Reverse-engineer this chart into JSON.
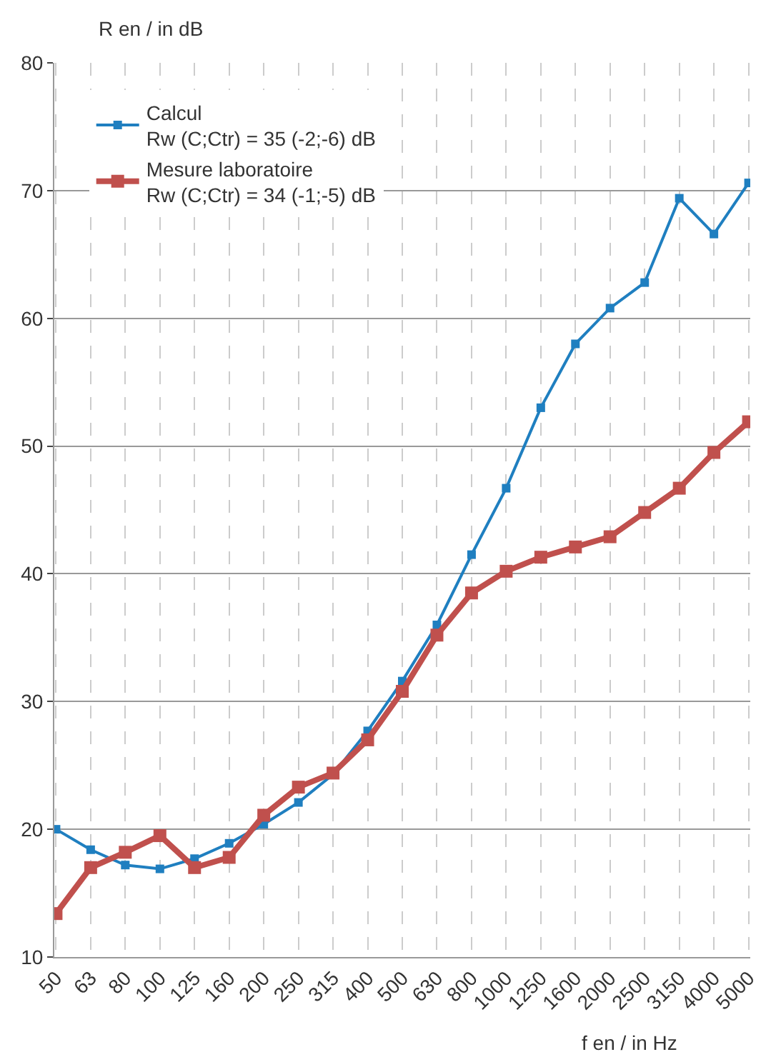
{
  "chart_data": {
    "type": "line",
    "ylabel": "R en / in dB",
    "xlabel": "f en / in Hz",
    "categories": [
      "50",
      "63",
      "80",
      "100",
      "125",
      "160",
      "200",
      "250",
      "315",
      "400",
      "500",
      "630",
      "800",
      "1000",
      "1250",
      "1600",
      "2000",
      "2500",
      "3150",
      "4000",
      "5000"
    ],
    "series": [
      {
        "name": "Calcul\nRw (C;Ctr) = 35 (-2;-6) dB",
        "color": "#1f7fc0",
        "values": [
          20.0,
          18.4,
          17.2,
          16.9,
          17.7,
          18.9,
          20.4,
          22.1,
          24.3,
          27.7,
          31.6,
          36.0,
          41.5,
          46.7,
          53.0,
          58.0,
          60.8,
          62.8,
          69.4,
          66.6,
          70.6
        ]
      },
      {
        "name": "Mesure laboratoire\nRw (C;Ctr) = 34 (-1;-5) dB",
        "color": "#c0504d",
        "values": [
          13.4,
          17.0,
          18.2,
          19.5,
          17.0,
          17.8,
          21.1,
          23.3,
          24.4,
          27.0,
          30.8,
          35.2,
          38.5,
          40.2,
          41.3,
          42.1,
          42.9,
          44.8,
          46.7,
          49.5,
          51.9
        ]
      }
    ],
    "ylim": [
      10,
      80
    ],
    "yticks": [
      10,
      20,
      30,
      40,
      50,
      60,
      70,
      80
    ],
    "grid": true,
    "legend": "top left",
    "marker": "square",
    "line_style": "solid"
  }
}
